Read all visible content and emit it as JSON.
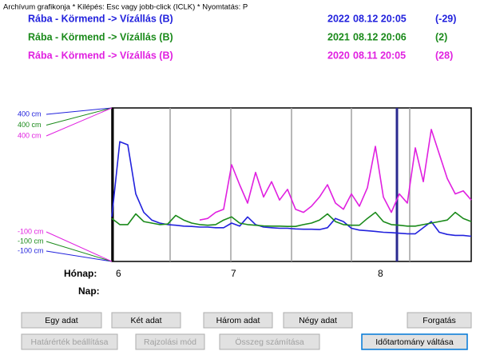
{
  "window_title": "Archívum grafikonja * Kilépés: Esc vagy jobb-click (ICLK) * Nyomtatás: P",
  "chart_data": {
    "type": "line",
    "x": [
      1,
      3,
      5,
      7,
      9,
      11,
      13,
      15,
      17,
      19,
      21,
      23,
      25,
      27,
      29,
      31,
      33,
      35,
      37,
      39,
      41,
      43,
      45,
      47,
      49,
      51,
      53,
      55,
      57,
      59,
      61,
      63,
      65,
      67,
      69,
      71,
      73,
      75,
      77,
      79,
      81,
      83,
      85,
      87,
      89,
      91
    ],
    "xlim": [
      1,
      91
    ],
    "ylim": [
      -100,
      400
    ],
    "yticks": [
      {
        "value": 400,
        "label": "400 cm"
      },
      {
        "value": -100,
        "label": "-100 cm"
      }
    ],
    "x_axis": {
      "label": "Hónap:",
      "sublabel": "Nap:",
      "months": [
        6,
        7,
        8
      ]
    },
    "series": [
      {
        "name": "Rába -  Körmend -> Vízállás (B)",
        "year": "2022",
        "date": "08.12 20:05",
        "diff": "(-29)",
        "color": "#2222dd",
        "values": [
          45,
          290,
          280,
          120,
          60,
          35,
          25,
          20,
          18,
          15,
          14,
          12,
          12,
          10,
          10,
          25,
          15,
          45,
          20,
          12,
          10,
          8,
          8,
          6,
          5,
          5,
          4,
          10,
          40,
          30,
          8,
          2,
          0,
          -2,
          -5,
          -6,
          -8,
          -10,
          -10,
          10,
          30,
          -5,
          -12,
          -15,
          -15,
          -18
        ]
      },
      {
        "name": "Rába -  Körmend -> Vízállás (B)",
        "year": "2021",
        "date": "08.12 20:06",
        "diff": "(2)",
        "color": "#1a8a1a",
        "values": [
          40,
          20,
          20,
          55,
          30,
          25,
          20,
          22,
          50,
          35,
          25,
          20,
          18,
          20,
          35,
          45,
          25,
          20,
          18,
          16,
          15,
          15,
          14,
          14,
          20,
          25,
          35,
          55,
          30,
          20,
          18,
          18,
          40,
          60,
          30,
          20,
          18,
          15,
          15,
          20,
          25,
          30,
          35,
          60,
          40,
          30
        ]
      },
      {
        "name": "Rába -  Körmend -> Vízállás (B)",
        "year": "2020",
        "date": "08.11 20:05",
        "diff": "(28)",
        "color": "#e020e0",
        "values": [
          null,
          null,
          null,
          null,
          null,
          null,
          null,
          null,
          null,
          null,
          null,
          35,
          40,
          60,
          70,
          215,
          150,
          90,
          190,
          110,
          160,
          100,
          135,
          70,
          60,
          80,
          110,
          150,
          90,
          70,
          120,
          80,
          140,
          275,
          110,
          60,
          120,
          90,
          270,
          160,
          330,
          250,
          170,
          120,
          130,
          100
        ]
      }
    ]
  },
  "buttons": {
    "row1": [
      "Egy adat",
      "Két adat",
      "Három adat",
      "Négy adat",
      "Forgatás"
    ],
    "row2": [
      "Határérték beállítása",
      "Rajzolási mód",
      "Összeg számítása",
      "Időtartomány váltása"
    ]
  }
}
